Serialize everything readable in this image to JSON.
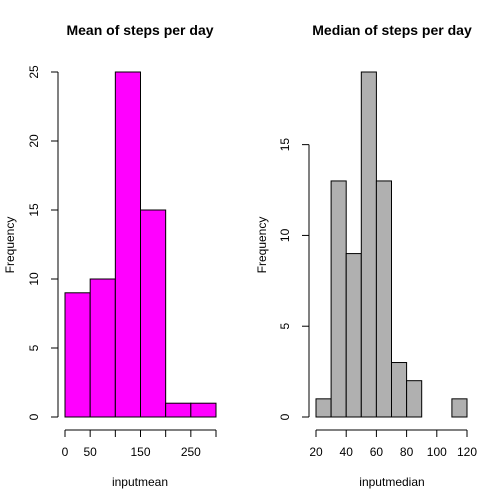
{
  "chart_data": [
    {
      "type": "bar",
      "subtype": "histogram",
      "title": "Mean of steps per day",
      "xlabel": "inputmean",
      "ylabel": "Frequency",
      "bar_color": "#ff00ff",
      "bins": [
        [
          0,
          50
        ],
        [
          50,
          100
        ],
        [
          100,
          150
        ],
        [
          150,
          200
        ],
        [
          200,
          250
        ],
        [
          250,
          300
        ]
      ],
      "values": [
        9,
        10,
        25,
        15,
        1,
        1
      ],
      "xlim": [
        0,
        300
      ],
      "ylim": [
        0,
        25
      ],
      "xticks": [
        0,
        50,
        100,
        150,
        200,
        250,
        300
      ],
      "xtick_labels": [
        "0",
        "50",
        "",
        "150",
        "",
        "250",
        ""
      ],
      "yticks": [
        0,
        5,
        10,
        15,
        20,
        25
      ],
      "ytick_labels": [
        "0",
        "5",
        "10",
        "15",
        "20",
        "25"
      ],
      "grid": false
    },
    {
      "type": "bar",
      "subtype": "histogram",
      "title": "Median of steps per day",
      "xlabel": "inputmedian",
      "ylabel": "Frequency",
      "bar_color": "#b0b0b0",
      "bins": [
        [
          20,
          30
        ],
        [
          30,
          40
        ],
        [
          40,
          50
        ],
        [
          50,
          60
        ],
        [
          60,
          70
        ],
        [
          70,
          80
        ],
        [
          80,
          90
        ],
        [
          90,
          100
        ],
        [
          100,
          110
        ],
        [
          110,
          120
        ]
      ],
      "values": [
        1,
        13,
        9,
        19,
        13,
        3,
        2,
        0,
        0,
        1
      ],
      "xlim": [
        20,
        120
      ],
      "ylim": [
        0,
        19
      ],
      "xticks": [
        20,
        40,
        60,
        80,
        100,
        120
      ],
      "xtick_labels": [
        "20",
        "40",
        "60",
        "80",
        "100",
        "120"
      ],
      "yticks": [
        0,
        5,
        10,
        15
      ],
      "ytick_labels": [
        "0",
        "5",
        "10",
        "15"
      ],
      "grid": false
    }
  ]
}
